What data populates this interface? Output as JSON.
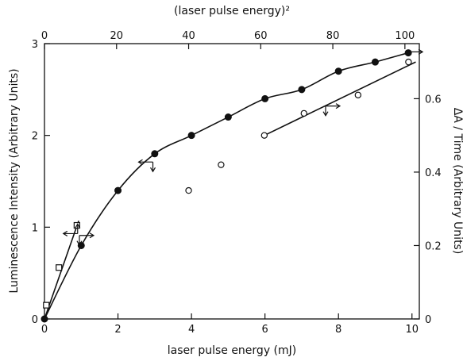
{
  "chart_data": {
    "type": "scatter",
    "xlabel": "laser pulse energy (mJ)",
    "x2label": "(laser pulse energy)²",
    "ylabel": "Luminescence Intensity (Arbitrary Units)",
    "y2label": "ΔA / Time (Arbitrary Units)",
    "xlim": [
      0,
      10.2
    ],
    "x2lim": [
      0,
      104
    ],
    "ylim": [
      0,
      3
    ],
    "y2lim": [
      0,
      0.75
    ],
    "x_ticks": [
      0,
      2,
      4,
      6,
      8,
      10
    ],
    "x2_ticks": [
      0,
      20,
      40,
      60,
      80,
      100
    ],
    "y_ticks": [
      0,
      1,
      2,
      3
    ],
    "y2_ticks": [
      0,
      0.2,
      0.4,
      0.6
    ],
    "x_tick_labels": [
      "0",
      "2",
      "4",
      "6",
      "8",
      "10"
    ],
    "x2_tick_labels": [
      "0",
      "20",
      "40",
      "60",
      "80",
      "100"
    ],
    "y_tick_labels": [
      "0",
      "1",
      "2",
      "3"
    ],
    "y2_tick_labels": [
      "0",
      "0.2",
      "0.4",
      "0.6"
    ],
    "grid": false,
    "series": [
      {
        "marker": "filled-circle",
        "axes": "bottom-left",
        "x": [
          0.0,
          1.0,
          2.0,
          3.0,
          4.0,
          5.0,
          6.0,
          7.0,
          8.0,
          9.0,
          9.9
        ],
        "y": [
          0.0,
          0.8,
          1.4,
          1.8,
          2.0,
          2.2,
          2.4,
          2.5,
          2.7,
          2.8,
          2.9
        ],
        "fit_curve": true
      },
      {
        "marker": "open-square",
        "axes": "top-left",
        "x": [
          0.5,
          4.0,
          9.0
        ],
        "y": [
          0.15,
          0.56,
          1.02
        ]
      },
      {
        "marker": "open-circle",
        "axes": "top-right",
        "x": [
          40,
          49,
          61,
          72,
          87,
          101
        ],
        "y": [
          0.35,
          0.42,
          0.5,
          0.56,
          0.61,
          0.7
        ]
      }
    ],
    "fit_lines": [
      {
        "axes": "top-left",
        "x": [
          0,
          9.5
        ],
        "y": [
          0.0,
          1.07
        ]
      },
      {
        "axes": "top-right",
        "x": [
          61,
          103
        ],
        "y": [
          0.5,
          0.7
        ]
      }
    ],
    "axis_indicators": [
      {
        "at_x": 9.2,
        "at_y": 0.93,
        "axes": "top-left",
        "points": "left",
        "vert": "up"
      },
      {
        "at_x": 0.95,
        "at_y": 0.91,
        "axes": "bottom-left",
        "points": "right",
        "vert": "down"
      },
      {
        "at_x": 2.95,
        "at_y": 1.71,
        "axes": "bottom-left",
        "points": "left",
        "vert": "down"
      },
      {
        "at_x": 78,
        "at_y": 0.58,
        "axes": "top-right",
        "points": "right",
        "vert": "down"
      },
      {
        "at_x": 9.9,
        "at_y": 2.91,
        "axes": "bottom-left",
        "points": "right",
        "vert": "none"
      }
    ]
  }
}
